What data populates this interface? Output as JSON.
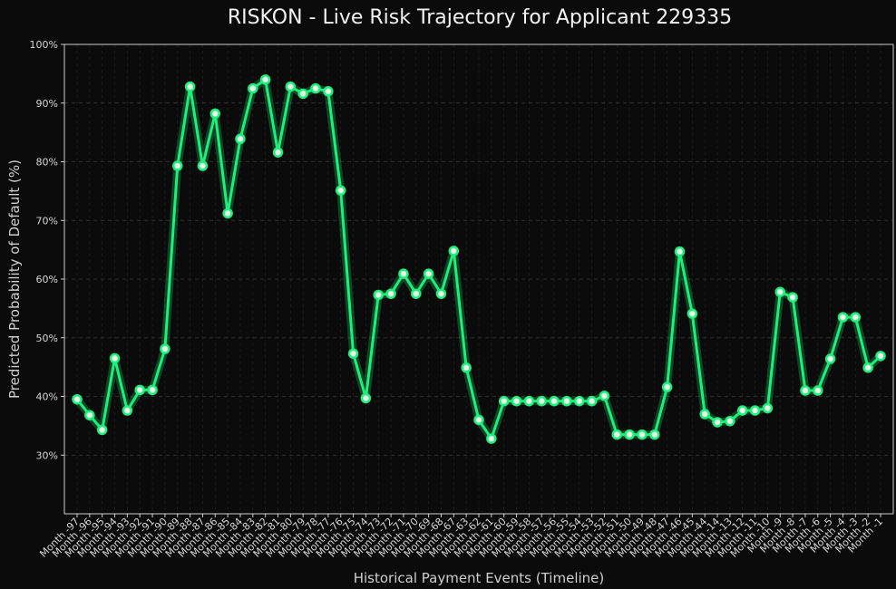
{
  "chart_data": {
    "type": "line",
    "title": "RISKON - Live Risk Trajectory for Applicant 229335",
    "xlabel": "Historical Payment Events (Timeline)",
    "ylabel": "Predicted Probability of Default (%)",
    "ylim": [
      20,
      100
    ],
    "yticks": [
      "30%",
      "40%",
      "50%",
      "60%",
      "70%",
      "80%",
      "90%",
      "100%"
    ],
    "ytick_values": [
      30,
      40,
      50,
      60,
      70,
      80,
      90,
      100
    ],
    "grid": true,
    "colors": {
      "line": "#1df07a",
      "marker_fill": "#e6ffe9",
      "background": "#0b0b0b"
    },
    "x": [
      "Month -97",
      "Month -96",
      "Month -95",
      "Month -94",
      "Month -93",
      "Month -92",
      "Month -91",
      "Month -90",
      "Month -89",
      "Month -88",
      "Month -87",
      "Month -86",
      "Month -85",
      "Month -84",
      "Month -83",
      "Month -82",
      "Month -81",
      "Month -80",
      "Month -79",
      "Month -78",
      "Month -77",
      "Month -76",
      "Month -75",
      "Month -74",
      "Month -73",
      "Month -72",
      "Month -71",
      "Month -70",
      "Month -69",
      "Month -68",
      "Month -67",
      "Month -63",
      "Month -62",
      "Month -61",
      "Month -60",
      "Month -59",
      "Month -58",
      "Month -57",
      "Month -56",
      "Month -55",
      "Month -54",
      "Month -53",
      "Month -52",
      "Month -51",
      "Month -50",
      "Month -49",
      "Month -48",
      "Month -47",
      "Month -46",
      "Month -45",
      "Month -44",
      "Month -14",
      "Month -13",
      "Month -12",
      "Month -11",
      "Month -10",
      "Month -9",
      "Month -8",
      "Month -7",
      "Month -6",
      "Month -5",
      "Month -4",
      "Month -3",
      "Month -2",
      "Month -1"
    ],
    "series": [
      {
        "values": [
          39.5,
          36.8,
          34.3,
          46.5,
          37.6,
          41.1,
          41.1,
          48.1,
          79.3,
          92.8,
          79.3,
          88.2,
          71.2,
          83.9,
          92.5,
          94.0,
          81.6,
          92.8,
          91.6,
          92.5,
          92.0,
          75.1,
          47.3,
          39.7,
          57.3,
          57.5,
          60.9,
          57.5,
          60.9,
          57.5,
          64.8,
          44.9,
          36.0,
          32.8,
          39.2,
          39.2,
          39.2,
          39.2,
          39.2,
          39.2,
          39.2,
          39.2,
          40.1,
          33.5,
          33.5,
          33.5,
          33.5,
          41.6,
          64.7,
          54.1,
          37.0,
          35.6,
          35.8,
          37.6,
          37.6,
          38.0,
          57.8,
          56.9,
          41.0,
          41.0,
          46.4,
          53.5,
          53.5,
          44.9,
          46.9
        ]
      }
    ]
  }
}
